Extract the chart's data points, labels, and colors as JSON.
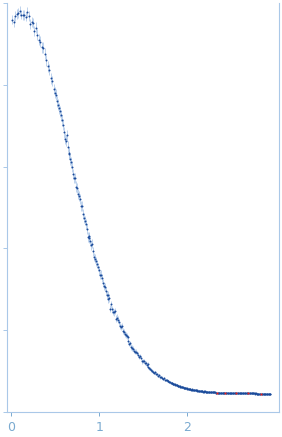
{
  "title": "",
  "xlabel": "",
  "ylabel": "",
  "xlim": [
    -0.05,
    3.05
  ],
  "ylim": [
    -0.05,
    1.05
  ],
  "x_ticks": [
    0,
    1,
    2
  ],
  "dot_color": "#1a4a9a",
  "error_color": "#adc8e8",
  "outlier_color": "#dd2222",
  "background_color": "#ffffff",
  "tick_color": "#7aaad0",
  "spine_color": "#aac8e8",
  "n_low": 30,
  "n_mid": 120,
  "n_high": 160
}
